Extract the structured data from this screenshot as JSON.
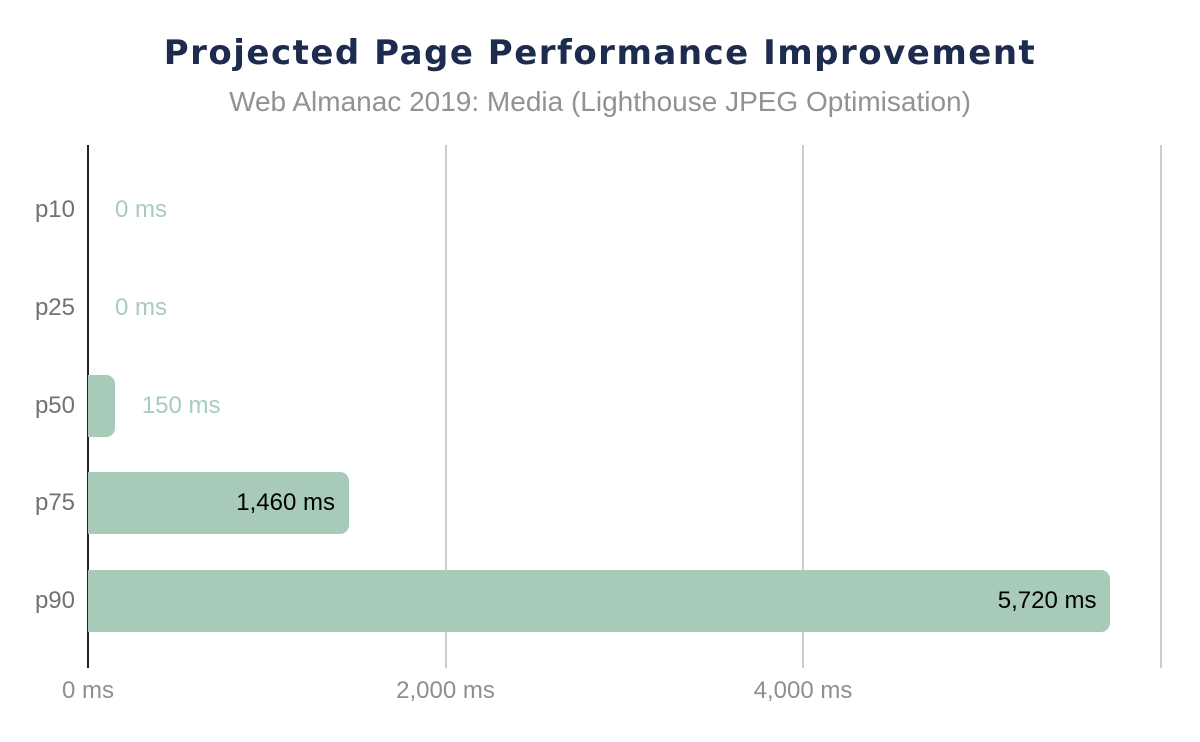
{
  "header": {
    "title": "Projected Page Performance Improvement",
    "subtitle": "Web Almanac 2019: Media (Lighthouse JPEG Optimisation)"
  },
  "chart_data": {
    "type": "bar",
    "orientation": "horizontal",
    "title": "Projected Page Performance Improvement",
    "subtitle": "Web Almanac 2019: Media (Lighthouse JPEG Optimisation)",
    "categories": [
      "p10",
      "p25",
      "p50",
      "p75",
      "p90"
    ],
    "values": [
      0,
      0,
      150,
      1460,
      5720
    ],
    "value_labels": [
      "0 ms",
      "0 ms",
      "150 ms",
      "1,460 ms",
      "5,720 ms"
    ],
    "unit": "ms",
    "xlabel": "",
    "ylabel": "",
    "xlim": [
      0,
      6109
    ],
    "grid": true,
    "legend": "none",
    "x_ticks": [
      {
        "value": 0,
        "label": "0 ms"
      },
      {
        "value": 2000,
        "label": "2,000 ms"
      },
      {
        "value": 4000,
        "label": "4,000 ms"
      },
      {
        "value": 6000,
        "label": ""
      }
    ],
    "colors": {
      "bar": "#a8cab9",
      "value_label_outside": "#a6cdb9",
      "value_label_inside": "#000000",
      "title": "#1d2c4e",
      "subtitle": "#909294",
      "category_label": "#6f7276",
      "tick_label": "#8c8f93",
      "axis_line": "#212121",
      "gridline": "#cccccc",
      "background": "#ffffff"
    }
  }
}
